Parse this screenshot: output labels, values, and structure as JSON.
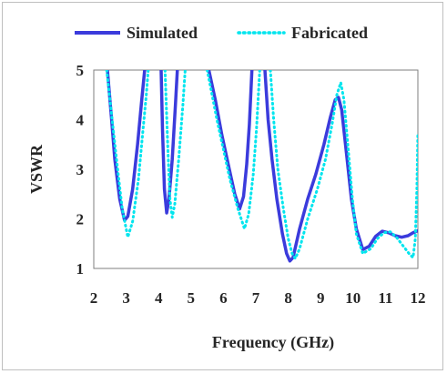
{
  "chart_data": {
    "type": "line",
    "xlabel": "Frequency (GHz)",
    "ylabel": "VSWR",
    "xlim": [
      2,
      12
    ],
    "ylim": [
      1,
      5
    ],
    "xticks": [
      2,
      3,
      4,
      5,
      6,
      7,
      8,
      9,
      10,
      11,
      12
    ],
    "yticks": [
      1,
      2,
      3,
      4,
      5
    ],
    "grid": false,
    "legend_position": "top",
    "series": [
      {
        "name": "Simulated",
        "color": "#3b3bdc",
        "style": "solid",
        "points": [
          [
            2.42,
            5.0
          ],
          [
            2.55,
            4.0
          ],
          [
            2.65,
            3.2
          ],
          [
            2.8,
            2.4
          ],
          [
            2.95,
            1.97
          ],
          [
            3.05,
            2.05
          ],
          [
            3.2,
            2.6
          ],
          [
            3.35,
            3.5
          ],
          [
            3.48,
            4.4
          ],
          [
            3.57,
            5.0
          ],
          [
            null,
            null
          ],
          [
            4.08,
            5.0
          ],
          [
            4.12,
            3.8
          ],
          [
            4.18,
            2.6
          ],
          [
            4.25,
            2.12
          ],
          [
            4.32,
            2.4
          ],
          [
            4.42,
            3.2
          ],
          [
            4.52,
            4.3
          ],
          [
            4.58,
            5.0
          ],
          [
            null,
            null
          ],
          [
            5.55,
            5.0
          ],
          [
            5.75,
            4.4
          ],
          [
            5.95,
            3.7
          ],
          [
            6.15,
            3.1
          ],
          [
            6.35,
            2.5
          ],
          [
            6.5,
            2.2
          ],
          [
            6.62,
            2.45
          ],
          [
            6.72,
            3.1
          ],
          [
            6.8,
            3.9
          ],
          [
            6.85,
            4.6
          ],
          [
            6.88,
            5.0
          ],
          [
            null,
            null
          ],
          [
            7.28,
            5.0
          ],
          [
            7.38,
            4.0
          ],
          [
            7.5,
            3.2
          ],
          [
            7.65,
            2.4
          ],
          [
            7.82,
            1.7
          ],
          [
            7.95,
            1.3
          ],
          [
            8.05,
            1.15
          ],
          [
            8.15,
            1.22
          ],
          [
            8.35,
            1.8
          ],
          [
            8.6,
            2.4
          ],
          [
            8.85,
            2.9
          ],
          [
            9.1,
            3.5
          ],
          [
            9.3,
            4.05
          ],
          [
            9.45,
            4.4
          ],
          [
            9.55,
            4.45
          ],
          [
            9.65,
            4.2
          ],
          [
            9.8,
            3.3
          ],
          [
            9.95,
            2.4
          ],
          [
            10.1,
            1.8
          ],
          [
            10.3,
            1.38
          ],
          [
            10.5,
            1.45
          ],
          [
            10.7,
            1.65
          ],
          [
            10.9,
            1.75
          ],
          [
            11.1,
            1.72
          ],
          [
            11.3,
            1.66
          ],
          [
            11.5,
            1.63
          ],
          [
            11.7,
            1.66
          ],
          [
            11.85,
            1.72
          ],
          [
            12.0,
            1.76
          ]
        ]
      },
      {
        "name": "Fabricated",
        "color": "#00e5ee",
        "style": "dotted",
        "points": [
          [
            2.4,
            5.0
          ],
          [
            2.55,
            4.1
          ],
          [
            2.72,
            3.1
          ],
          [
            2.88,
            2.2
          ],
          [
            3.05,
            1.63
          ],
          [
            3.2,
            1.95
          ],
          [
            3.38,
            2.8
          ],
          [
            3.52,
            3.8
          ],
          [
            3.62,
            4.5
          ],
          [
            3.68,
            5.0
          ],
          [
            null,
            null
          ],
          [
            4.2,
            5.0
          ],
          [
            4.28,
            3.5
          ],
          [
            4.35,
            2.4
          ],
          [
            4.42,
            2.03
          ],
          [
            4.5,
            2.3
          ],
          [
            4.62,
            3.2
          ],
          [
            4.75,
            4.3
          ],
          [
            4.82,
            5.0
          ],
          [
            null,
            null
          ],
          [
            5.5,
            5.0
          ],
          [
            5.8,
            4.0
          ],
          [
            6.0,
            3.4
          ],
          [
            6.2,
            2.8
          ],
          [
            6.45,
            2.2
          ],
          [
            6.65,
            1.8
          ],
          [
            6.78,
            2.1
          ],
          [
            6.92,
            2.9
          ],
          [
            7.02,
            3.8
          ],
          [
            7.08,
            4.5
          ],
          [
            7.12,
            5.0
          ],
          [
            null,
            null
          ],
          [
            7.45,
            5.0
          ],
          [
            7.55,
            4.0
          ],
          [
            7.68,
            3.0
          ],
          [
            7.85,
            2.2
          ],
          [
            8.0,
            1.6
          ],
          [
            8.12,
            1.3
          ],
          [
            8.22,
            1.2
          ],
          [
            8.35,
            1.4
          ],
          [
            8.6,
            2.0
          ],
          [
            8.9,
            2.6
          ],
          [
            9.15,
            3.2
          ],
          [
            9.35,
            3.9
          ],
          [
            9.5,
            4.5
          ],
          [
            9.62,
            4.75
          ],
          [
            9.72,
            4.4
          ],
          [
            9.85,
            3.4
          ],
          [
            9.98,
            2.4
          ],
          [
            10.1,
            1.7
          ],
          [
            10.3,
            1.3
          ],
          [
            10.55,
            1.4
          ],
          [
            10.75,
            1.6
          ],
          [
            10.95,
            1.72
          ],
          [
            11.15,
            1.74
          ],
          [
            11.35,
            1.62
          ],
          [
            11.55,
            1.45
          ],
          [
            11.75,
            1.28
          ],
          [
            11.85,
            1.22
          ],
          [
            11.92,
            1.6
          ],
          [
            11.97,
            2.6
          ],
          [
            12.0,
            3.7
          ]
        ]
      }
    ]
  }
}
